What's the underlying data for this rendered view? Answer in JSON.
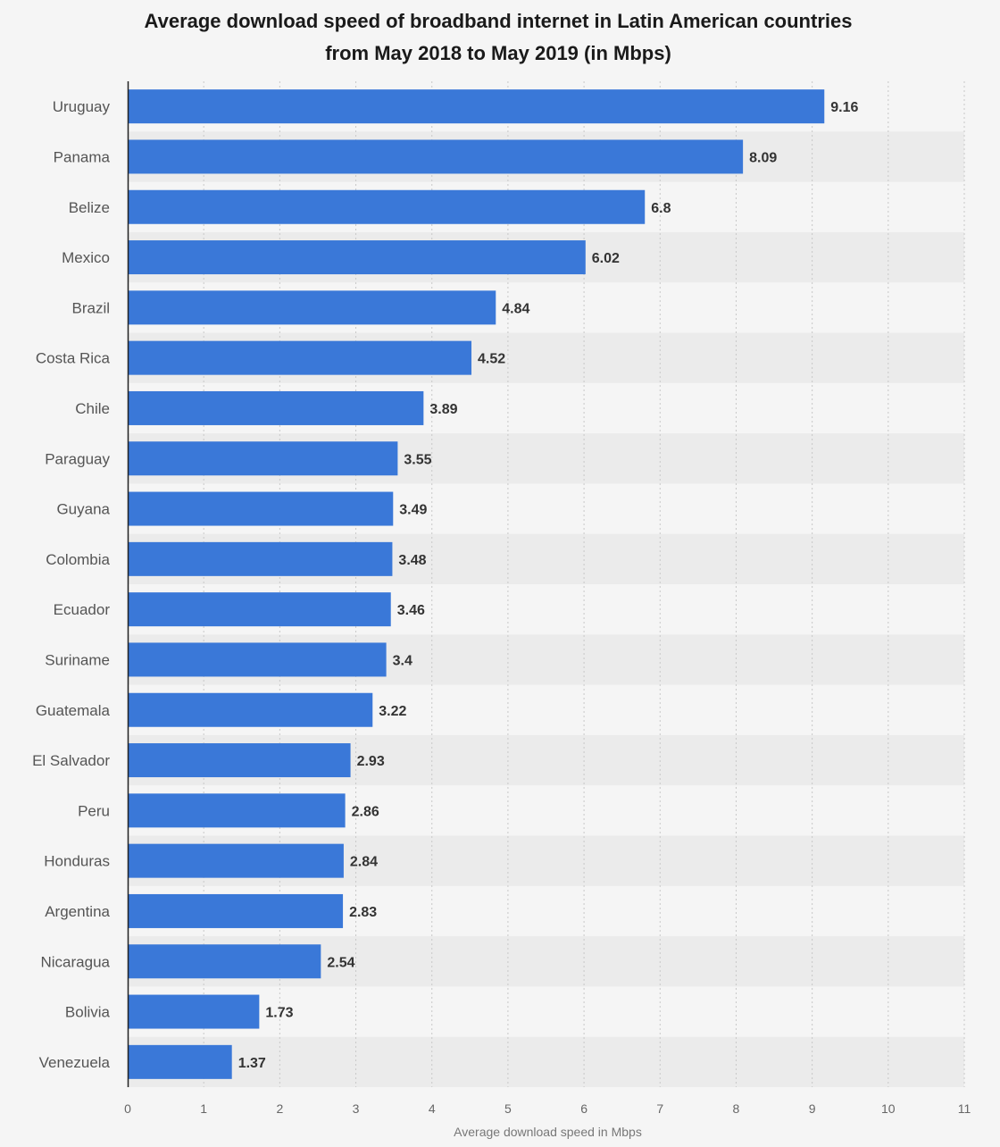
{
  "chart_data": {
    "type": "bar",
    "orientation": "horizontal",
    "title": "Average download speed of broadband internet in Latin American countries",
    "subtitle": "from May 2018 to May 2019 (in Mbps)",
    "xlabel": "Average download speed in Mbps",
    "ylabel": "",
    "xlim": [
      0,
      11
    ],
    "xticks": [
      0,
      1,
      2,
      3,
      4,
      5,
      6,
      7,
      8,
      9,
      10,
      11
    ],
    "grid": true,
    "categories": [
      "Uruguay",
      "Panama",
      "Belize",
      "Mexico",
      "Brazil",
      "Costa Rica",
      "Chile",
      "Paraguay",
      "Guyana",
      "Colombia",
      "Ecuador",
      "Suriname",
      "Guatemala",
      "El Salvador",
      "Peru",
      "Honduras",
      "Argentina",
      "Nicaragua",
      "Bolivia",
      "Venezuela"
    ],
    "values": [
      9.16,
      8.09,
      6.8,
      6.02,
      4.84,
      4.52,
      3.89,
      3.55,
      3.49,
      3.48,
      3.46,
      3.4,
      3.22,
      2.93,
      2.86,
      2.84,
      2.83,
      2.54,
      1.73,
      1.37
    ],
    "value_labels": [
      "9.16",
      "8.09",
      "6.8",
      "6.02",
      "4.84",
      "4.52",
      "3.89",
      "3.55",
      "3.49",
      "3.48",
      "3.46",
      "3.4",
      "3.22",
      "2.93",
      "2.86",
      "2.84",
      "2.83",
      "2.54",
      "1.73",
      "1.37"
    ],
    "bar_color": "#3a78d8",
    "band_color": "#ebebeb"
  }
}
